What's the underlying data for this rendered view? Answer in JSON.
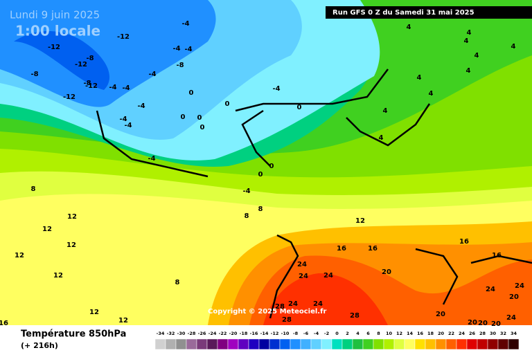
{
  "header": {
    "date": "Lundi 9 juin 2025",
    "time": "1:00 locale",
    "run": "Run GFS 0 Z du Samedi 31 mai 2025",
    "copyright": "Copyright © 2025 Meteociel.fr"
  },
  "footer": {
    "title": "Température 850hPa",
    "lead": "(+ 216h)"
  },
  "scale": {
    "ticks": [
      -34,
      -32,
      -30,
      -28,
      -26,
      -24,
      -22,
      -20,
      -18,
      -16,
      -14,
      -12,
      -10,
      -8,
      -6,
      -4,
      -2,
      0,
      2,
      4,
      6,
      8,
      10,
      12,
      14,
      16,
      18,
      20,
      22,
      24,
      26,
      28,
      30,
      32,
      34
    ],
    "colors": [
      "#d0d0d0",
      "#b0b0b0",
      "#909090",
      "#9a6a9a",
      "#7a3a7a",
      "#5a1a5a",
      "#800080",
      "#a000c0",
      "#6000c0",
      "#2000c0",
      "#0000a0",
      "#0030d0",
      "#0060f0",
      "#2090ff",
      "#40b0ff",
      "#60d0ff",
      "#80f0ff",
      "#00e0c0",
      "#00d080",
      "#20c040",
      "#40d020",
      "#80e000",
      "#b0f000",
      "#e0ff40",
      "#ffff60",
      "#ffe000",
      "#ffc000",
      "#ff9000",
      "#ff6000",
      "#ff3000",
      "#e00000",
      "#c00000",
      "#900000",
      "#600000",
      "#300000"
    ]
  },
  "map_labels": [
    -4,
    -12,
    -12,
    -8,
    -4,
    -4,
    -12,
    -8,
    -8,
    -4,
    -8,
    -12,
    -4,
    -4,
    -12,
    -4,
    -4,
    -4,
    0,
    0,
    -4,
    0,
    0,
    0,
    0,
    -4,
    0,
    0,
    -4,
    8,
    8,
    8,
    12,
    12,
    12,
    12,
    12,
    8,
    12,
    12,
    16,
    4,
    4,
    4,
    4,
    4,
    4,
    4,
    4,
    4,
    4,
    12,
    16,
    16,
    16,
    16,
    20,
    24,
    24,
    24,
    24,
    24,
    20,
    28,
    24,
    24,
    28,
    28,
    20,
    24,
    20,
    20,
    20
  ]
}
